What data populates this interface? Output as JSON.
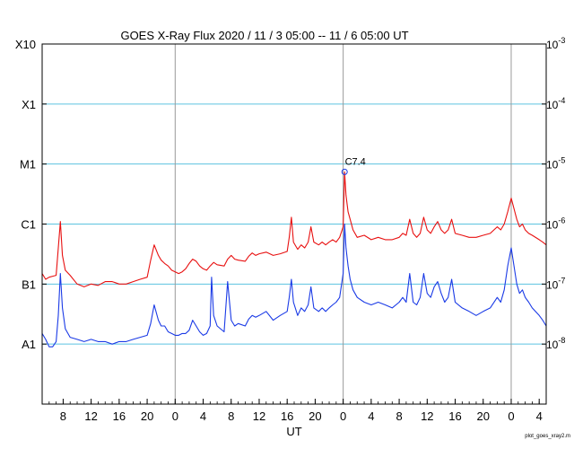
{
  "chart_data": {
    "type": "line",
    "title": "GOES X-Ray Flux   2020 / 11 /  3   05:00 -- 11 /  6   05:00   UT",
    "xlabel": "UT",
    "footer": "plot_goes_xray2.m",
    "x_unit": "hours since 2020-11-03 05:00 UT",
    "xlim": [
      0,
      72
    ],
    "ylim": [
      1e-09,
      0.001
    ],
    "yscale": "log",
    "grid": true,
    "left_ticks": [
      {
        "label": "A1",
        "value": 1e-08
      },
      {
        "label": "B1",
        "value": 1e-07
      },
      {
        "label": "C1",
        "value": 1e-06
      },
      {
        "label": "M1",
        "value": 1e-05
      },
      {
        "label": "X1",
        "value": 0.0001
      },
      {
        "label": "X10",
        "value": 0.001
      }
    ],
    "right_ticks": [
      {
        "base": "10",
        "exp": "-8",
        "value": 1e-08
      },
      {
        "base": "10",
        "exp": "-7",
        "value": 1e-07
      },
      {
        "base": "10",
        "exp": "-6",
        "value": 1e-06
      },
      {
        "base": "10",
        "exp": "-5",
        "value": 1e-05
      },
      {
        "base": "10",
        "exp": "-4",
        "value": 0.0001
      },
      {
        "base": "10",
        "exp": "-3",
        "value": 0.001
      }
    ],
    "x_ticks": [
      {
        "label": "8",
        "x": 3
      },
      {
        "label": "12",
        "x": 7
      },
      {
        "label": "16",
        "x": 11
      },
      {
        "label": "20",
        "x": 15
      },
      {
        "label": "0",
        "x": 19
      },
      {
        "label": "4",
        "x": 23
      },
      {
        "label": "8",
        "x": 27
      },
      {
        "label": "12",
        "x": 31
      },
      {
        "label": "16",
        "x": 35
      },
      {
        "label": "20",
        "x": 39
      },
      {
        "label": "0",
        "x": 43
      },
      {
        "label": "4",
        "x": 47
      },
      {
        "label": "8",
        "x": 51
      },
      {
        "label": "12",
        "x": 55
      },
      {
        "label": "16",
        "x": 59
      },
      {
        "label": "20",
        "x": 63
      },
      {
        "label": "0",
        "x": 67
      },
      {
        "label": "4",
        "x": 71
      }
    ],
    "day_lines_x": [
      19,
      43,
      67
    ],
    "annotation": {
      "label": "C7.4",
      "x": 43.2,
      "y": 7.4e-06
    },
    "series": [
      {
        "color": "#e81010",
        "points": [
          [
            0,
            1.5e-07
          ],
          [
            0.5,
            1.2e-07
          ],
          [
            1,
            1.3e-07
          ],
          [
            1.5,
            1.35e-07
          ],
          [
            2,
            1.4e-07
          ],
          [
            2.3,
            4e-07
          ],
          [
            2.6,
            1.1e-06
          ],
          [
            2.9,
            3e-07
          ],
          [
            3.3,
            1.7e-07
          ],
          [
            4,
            1.4e-07
          ],
          [
            5,
            1e-07
          ],
          [
            6,
            9e-08
          ],
          [
            7,
            1e-07
          ],
          [
            8,
            9.5e-08
          ],
          [
            9,
            1.1e-07
          ],
          [
            10,
            1.1e-07
          ],
          [
            11,
            1e-07
          ],
          [
            12,
            1e-07
          ],
          [
            13,
            1.1e-07
          ],
          [
            14,
            1.2e-07
          ],
          [
            15,
            1.3e-07
          ],
          [
            15.5,
            2.5e-07
          ],
          [
            16,
            4.5e-07
          ],
          [
            16.6,
            3e-07
          ],
          [
            17,
            2.5e-07
          ],
          [
            17.5,
            2.2e-07
          ],
          [
            18,
            2e-07
          ],
          [
            18.5,
            1.7e-07
          ],
          [
            19,
            1.6e-07
          ],
          [
            19.5,
            1.5e-07
          ],
          [
            20,
            1.6e-07
          ],
          [
            20.5,
            1.8e-07
          ],
          [
            21,
            2.2e-07
          ],
          [
            21.5,
            2.6e-07
          ],
          [
            22,
            2.4e-07
          ],
          [
            22.5,
            2e-07
          ],
          [
            23,
            1.8e-07
          ],
          [
            23.5,
            1.7e-07
          ],
          [
            24,
            2e-07
          ],
          [
            24.5,
            2.3e-07
          ],
          [
            25,
            2.1e-07
          ],
          [
            26,
            2e-07
          ],
          [
            26.5,
            2.6e-07
          ],
          [
            27,
            3e-07
          ],
          [
            27.5,
            2.6e-07
          ],
          [
            28,
            2.5e-07
          ],
          [
            29,
            2.4e-07
          ],
          [
            29.5,
            2.9e-07
          ],
          [
            30,
            3.3e-07
          ],
          [
            30.5,
            3e-07
          ],
          [
            31,
            3.2e-07
          ],
          [
            32,
            3.4e-07
          ],
          [
            33,
            3e-07
          ],
          [
            34,
            3.2e-07
          ],
          [
            35,
            3.5e-07
          ],
          [
            35.3,
            6e-07
          ],
          [
            35.6,
            1.3e-06
          ],
          [
            35.9,
            5e-07
          ],
          [
            36.5,
            3.8e-07
          ],
          [
            37,
            4.5e-07
          ],
          [
            37.5,
            4e-07
          ],
          [
            38,
            5e-07
          ],
          [
            38.4,
            9e-07
          ],
          [
            38.8,
            5e-07
          ],
          [
            39.5,
            4.5e-07
          ],
          [
            40,
            5e-07
          ],
          [
            40.5,
            4.5e-07
          ],
          [
            41,
            5e-07
          ],
          [
            41.5,
            5.5e-07
          ],
          [
            42,
            5e-07
          ],
          [
            42.5,
            6e-07
          ],
          [
            43,
            9e-07
          ],
          [
            43.2,
            7.4e-06
          ],
          [
            43.4,
            3e-06
          ],
          [
            43.7,
            1.6e-06
          ],
          [
            44,
            1.2e-06
          ],
          [
            44.4,
            8e-07
          ],
          [
            45,
            6e-07
          ],
          [
            46,
            6.5e-07
          ],
          [
            47,
            5.5e-07
          ],
          [
            48,
            6e-07
          ],
          [
            49,
            5.5e-07
          ],
          [
            50,
            5.5e-07
          ],
          [
            51,
            6e-07
          ],
          [
            51.5,
            7e-07
          ],
          [
            52,
            6.5e-07
          ],
          [
            52.5,
            1.2e-06
          ],
          [
            53,
            7e-07
          ],
          [
            53.5,
            6e-07
          ],
          [
            54,
            7e-07
          ],
          [
            54.5,
            1.3e-06
          ],
          [
            55,
            8e-07
          ],
          [
            55.5,
            7e-07
          ],
          [
            56,
            9e-07
          ],
          [
            56.5,
            1.1e-06
          ],
          [
            57,
            8e-07
          ],
          [
            57.5,
            7e-07
          ],
          [
            58,
            8e-07
          ],
          [
            58.5,
            1.2e-06
          ],
          [
            59,
            7e-07
          ],
          [
            60,
            6.5e-07
          ],
          [
            61,
            6e-07
          ],
          [
            62,
            6e-07
          ],
          [
            63,
            6.5e-07
          ],
          [
            64,
            7e-07
          ],
          [
            65,
            9e-07
          ],
          [
            65.5,
            8e-07
          ],
          [
            66,
            1e-06
          ],
          [
            66.5,
            1.6e-06
          ],
          [
            67,
            2.7e-06
          ],
          [
            67.4,
            1.8e-06
          ],
          [
            67.8,
            1.2e-06
          ],
          [
            68.2,
            9e-07
          ],
          [
            68.6,
            1e-06
          ],
          [
            69,
            8e-07
          ],
          [
            69.5,
            7e-07
          ],
          [
            70,
            6.5e-07
          ],
          [
            71,
            5.5e-07
          ],
          [
            71.5,
            5e-07
          ],
          [
            72,
            4.5e-07
          ]
        ]
      },
      {
        "color": "#1a3ae6",
        "points": [
          [
            0,
            1.5e-08
          ],
          [
            0.5,
            1.2e-08
          ],
          [
            1,
            9e-09
          ],
          [
            1.5,
            9e-09
          ],
          [
            2,
            1.1e-08
          ],
          [
            2.3,
            3e-08
          ],
          [
            2.6,
            1.5e-07
          ],
          [
            2.9,
            4e-08
          ],
          [
            3.3,
            1.8e-08
          ],
          [
            4,
            1.3e-08
          ],
          [
            5,
            1.2e-08
          ],
          [
            6,
            1.1e-08
          ],
          [
            7,
            1.2e-08
          ],
          [
            8,
            1.1e-08
          ],
          [
            9,
            1.1e-08
          ],
          [
            10,
            1e-08
          ],
          [
            11,
            1.1e-08
          ],
          [
            12,
            1.1e-08
          ],
          [
            13,
            1.2e-08
          ],
          [
            14,
            1.3e-08
          ],
          [
            15,
            1.4e-08
          ],
          [
            15.5,
            2.2e-08
          ],
          [
            16,
            4.5e-08
          ],
          [
            16.6,
            2.5e-08
          ],
          [
            17,
            2e-08
          ],
          [
            17.5,
            2e-08
          ],
          [
            18,
            1.6e-08
          ],
          [
            18.5,
            1.5e-08
          ],
          [
            19,
            1.4e-08
          ],
          [
            19.5,
            1.4e-08
          ],
          [
            20,
            1.5e-08
          ],
          [
            20.5,
            1.5e-08
          ],
          [
            21,
            1.7e-08
          ],
          [
            21.5,
            2.5e-08
          ],
          [
            22,
            2e-08
          ],
          [
            22.5,
            1.6e-08
          ],
          [
            23,
            1.4e-08
          ],
          [
            23.5,
            1.5e-08
          ],
          [
            24,
            2e-08
          ],
          [
            24.2,
            1.3e-07
          ],
          [
            24.5,
            3e-08
          ],
          [
            25,
            2e-08
          ],
          [
            26,
            1.6e-08
          ],
          [
            26.5,
            1.1e-07
          ],
          [
            27,
            2.5e-08
          ],
          [
            27.5,
            2e-08
          ],
          [
            28,
            2.2e-08
          ],
          [
            29,
            2e-08
          ],
          [
            29.5,
            2.6e-08
          ],
          [
            30,
            3e-08
          ],
          [
            30.5,
            2.8e-08
          ],
          [
            31,
            3e-08
          ],
          [
            32,
            3.5e-08
          ],
          [
            33,
            2.5e-08
          ],
          [
            34,
            3e-08
          ],
          [
            35,
            3.5e-08
          ],
          [
            35.3,
            6e-08
          ],
          [
            35.6,
            1.2e-07
          ],
          [
            35.9,
            5e-08
          ],
          [
            36.5,
            3e-08
          ],
          [
            37,
            4e-08
          ],
          [
            37.5,
            3.5e-08
          ],
          [
            38,
            4.5e-08
          ],
          [
            38.4,
            9e-08
          ],
          [
            38.8,
            4e-08
          ],
          [
            39.5,
            3.5e-08
          ],
          [
            40,
            4e-08
          ],
          [
            40.5,
            3.5e-08
          ],
          [
            41,
            4e-08
          ],
          [
            41.5,
            4.5e-08
          ],
          [
            42,
            5e-08
          ],
          [
            42.5,
            6e-08
          ],
          [
            43,
            1.5e-07
          ],
          [
            43.2,
            1e-06
          ],
          [
            43.4,
            4e-07
          ],
          [
            43.7,
            2e-07
          ],
          [
            44,
            1.2e-07
          ],
          [
            44.4,
            8e-08
          ],
          [
            45,
            6e-08
          ],
          [
            46,
            5e-08
          ],
          [
            47,
            4.5e-08
          ],
          [
            48,
            5e-08
          ],
          [
            49,
            4.5e-08
          ],
          [
            50,
            4e-08
          ],
          [
            51,
            5e-08
          ],
          [
            51.5,
            6e-08
          ],
          [
            52,
            5e-08
          ],
          [
            52.5,
            1.5e-07
          ],
          [
            53,
            5e-08
          ],
          [
            53.5,
            4.5e-08
          ],
          [
            54,
            6e-08
          ],
          [
            54.5,
            1.5e-07
          ],
          [
            55,
            7e-08
          ],
          [
            55.5,
            6e-08
          ],
          [
            56,
            9e-08
          ],
          [
            56.5,
            1.1e-07
          ],
          [
            57,
            7e-08
          ],
          [
            57.5,
            5e-08
          ],
          [
            58,
            6e-08
          ],
          [
            58.5,
            1.2e-07
          ],
          [
            59,
            5e-08
          ],
          [
            60,
            4e-08
          ],
          [
            61,
            3.5e-08
          ],
          [
            62,
            3e-08
          ],
          [
            63,
            3.5e-08
          ],
          [
            64,
            4e-08
          ],
          [
            65,
            6e-08
          ],
          [
            65.5,
            5e-08
          ],
          [
            66,
            8e-08
          ],
          [
            66.5,
            2e-07
          ],
          [
            67,
            4e-07
          ],
          [
            67.4,
            2e-07
          ],
          [
            67.8,
            1e-07
          ],
          [
            68.2,
            7e-08
          ],
          [
            68.6,
            8e-08
          ],
          [
            69,
            6e-08
          ],
          [
            69.5,
            5e-08
          ],
          [
            70,
            4e-08
          ],
          [
            71,
            3e-08
          ],
          [
            71.5,
            2.5e-08
          ],
          [
            72,
            2e-08
          ]
        ]
      }
    ]
  }
}
